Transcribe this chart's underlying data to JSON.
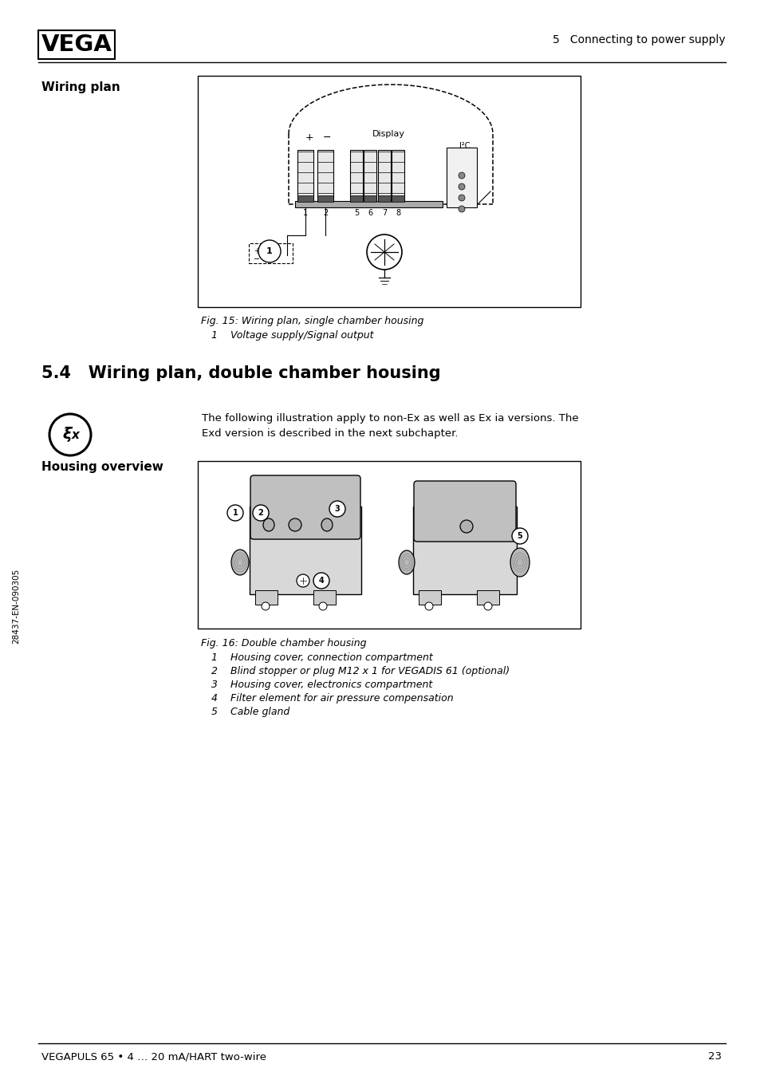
{
  "page_bg": "#ffffff",
  "header_logo_text": "VEGA",
  "header_right_text": "5   Connecting to power supply",
  "footer_left_text": "VEGAPULS 65 • 4 … 20 mA/HART two-wire",
  "footer_right_text": "23",
  "sidebar_text": "28437-EN-090305",
  "section_label_wiring": "Wiring plan",
  "section_label_housing": "Housing overview",
  "fig15_caption": "Fig. 15: Wiring plan, single chamber housing",
  "fig15_item1": "1    Voltage supply/Signal output",
  "section_title": "5.4   Wiring plan, double chamber housing",
  "section_body_line1": "The following illustration apply to non-Ex as well as Ex ia versions. The",
  "section_body_line2": "Exd version is described in the next subchapter.",
  "fig16_caption": "Fig. 16: Double chamber housing",
  "fig16_items": [
    "1    Housing cover, connection compartment",
    "2    Blind stopper or plug M12 x 1 for VEGADIS 61 (optional)",
    "3    Housing cover, electronics compartment",
    "4    Filter element for air pressure compensation",
    "5    Cable gland"
  ]
}
